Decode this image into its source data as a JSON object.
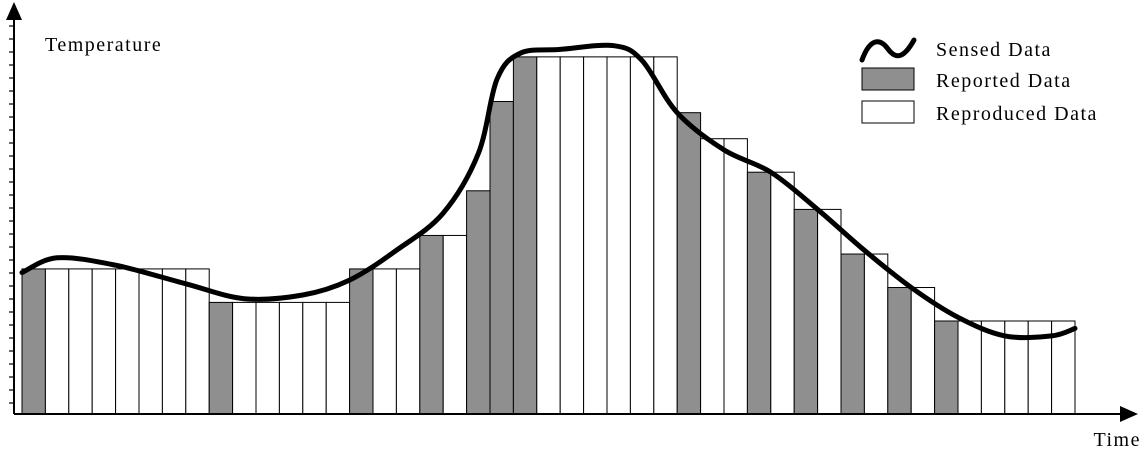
{
  "chart_data": {
    "type": "bar",
    "xlabel": "Time",
    "ylabel": "Temperature",
    "ylim": [
      0,
      100
    ],
    "legend_position": "top-right",
    "legend": [
      {
        "label": "Sensed Data",
        "style": "curve"
      },
      {
        "label": "Reported Data",
        "style": "gray-bar"
      },
      {
        "label": "Reproduced Data",
        "style": "white-bar"
      }
    ],
    "colors": {
      "reported": "#8f8f8f",
      "reproduced": "#ffffff",
      "sensed": "#000000"
    },
    "bars": [
      {
        "kind": "reported",
        "value": 39
      },
      {
        "kind": "reproduced",
        "value": 39
      },
      {
        "kind": "reproduced",
        "value": 39
      },
      {
        "kind": "reproduced",
        "value": 39
      },
      {
        "kind": "reproduced",
        "value": 39
      },
      {
        "kind": "reproduced",
        "value": 39
      },
      {
        "kind": "reproduced",
        "value": 39
      },
      {
        "kind": "reproduced",
        "value": 39
      },
      {
        "kind": "reported",
        "value": 30
      },
      {
        "kind": "reproduced",
        "value": 30
      },
      {
        "kind": "reproduced",
        "value": 30
      },
      {
        "kind": "reproduced",
        "value": 30
      },
      {
        "kind": "reproduced",
        "value": 30
      },
      {
        "kind": "reproduced",
        "value": 30
      },
      {
        "kind": "reported",
        "value": 39
      },
      {
        "kind": "reproduced",
        "value": 39
      },
      {
        "kind": "reproduced",
        "value": 39
      },
      {
        "kind": "reported",
        "value": 48
      },
      {
        "kind": "reproduced",
        "value": 48
      },
      {
        "kind": "reported",
        "value": 60
      },
      {
        "kind": "reported",
        "value": 84
      },
      {
        "kind": "reported",
        "value": 96
      },
      {
        "kind": "reproduced",
        "value": 96
      },
      {
        "kind": "reproduced",
        "value": 96
      },
      {
        "kind": "reproduced",
        "value": 96
      },
      {
        "kind": "reproduced",
        "value": 96
      },
      {
        "kind": "reproduced",
        "value": 96
      },
      {
        "kind": "reproduced",
        "value": 96
      },
      {
        "kind": "reported",
        "value": 81
      },
      {
        "kind": "reproduced",
        "value": 74
      },
      {
        "kind": "reproduced",
        "value": 74
      },
      {
        "kind": "reported",
        "value": 65
      },
      {
        "kind": "reproduced",
        "value": 65
      },
      {
        "kind": "reported",
        "value": 55
      },
      {
        "kind": "reproduced",
        "value": 55
      },
      {
        "kind": "reported",
        "value": 43
      },
      {
        "kind": "reproduced",
        "value": 43
      },
      {
        "kind": "reported",
        "value": 34
      },
      {
        "kind": "reproduced",
        "value": 34
      },
      {
        "kind": "reported",
        "value": 25
      },
      {
        "kind": "reproduced",
        "value": 25
      },
      {
        "kind": "reproduced",
        "value": 25
      },
      {
        "kind": "reproduced",
        "value": 25
      },
      {
        "kind": "reproduced",
        "value": 25
      },
      {
        "kind": "reproduced",
        "value": 25
      }
    ],
    "sensed": [
      [
        0,
        38
      ],
      [
        1.5,
        42
      ],
      [
        4,
        40
      ],
      [
        7,
        35
      ],
      [
        9.5,
        31
      ],
      [
        12,
        32
      ],
      [
        14,
        36
      ],
      [
        16,
        44
      ],
      [
        18,
        54
      ],
      [
        19.5,
        70
      ],
      [
        20.3,
        90
      ],
      [
        21.3,
        97
      ],
      [
        23,
        98
      ],
      [
        25.3,
        99
      ],
      [
        26.5,
        95
      ],
      [
        28,
        81
      ],
      [
        30,
        71
      ],
      [
        32,
        65
      ],
      [
        34,
        55
      ],
      [
        36,
        44
      ],
      [
        38,
        34
      ],
      [
        40,
        26
      ],
      [
        42,
        21
      ],
      [
        44,
        21
      ],
      [
        45,
        23
      ]
    ]
  }
}
